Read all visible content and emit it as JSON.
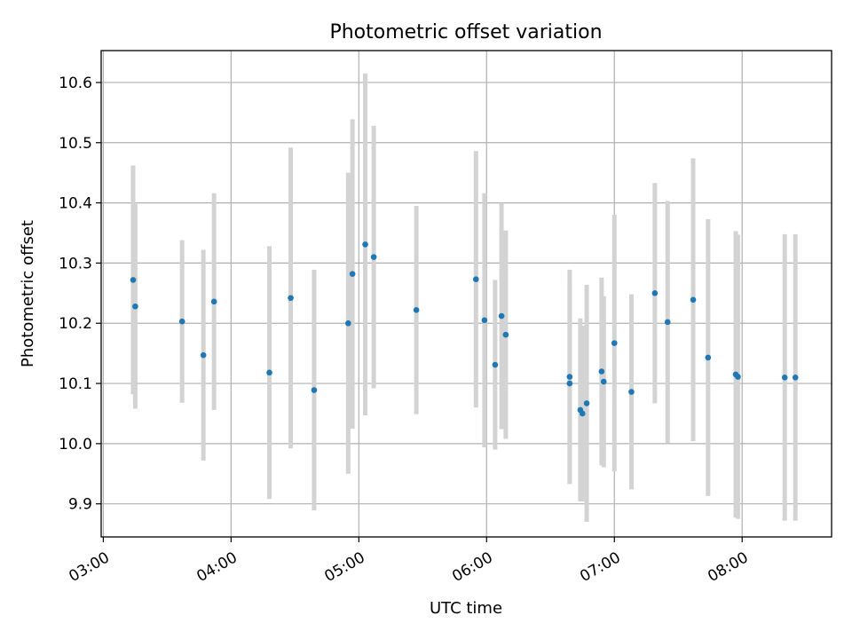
{
  "chart_data": {
    "type": "scatter",
    "title": "Photometric offset variation",
    "xlabel": "UTC time",
    "ylabel": "Photometric offset",
    "x_ticks": [
      "03:00",
      "04:00",
      "05:00",
      "06:00",
      "07:00",
      "08:00"
    ],
    "y_ticks": [
      "9.9",
      "10.0",
      "10.1",
      "10.2",
      "10.3",
      "10.4",
      "10.5",
      "10.6"
    ],
    "xlim": [
      "02:59",
      "08:42"
    ],
    "ylim": [
      9.845,
      10.653
    ],
    "grid": true,
    "colors": {
      "points": "#1f77b4",
      "errorbars": "#d3d3d3",
      "grid": "#b0b0b0"
    },
    "series": [
      {
        "x": [
          "03:14",
          "03:15",
          "03:37",
          "03:47",
          "03:52",
          "04:18",
          "04:28",
          "04:39",
          "04:55",
          "04:57",
          "05:03",
          "05:07",
          "05:27",
          "05:55",
          "05:59",
          "06:04",
          "06:07",
          "06:09",
          "06:39",
          "06:39",
          "06:44",
          "06:45",
          "06:47",
          "06:54",
          "06:55",
          "07:00",
          "07:08",
          "07:19",
          "07:25",
          "07:37",
          "07:44",
          "07:57",
          "07:58",
          "08:20",
          "08:25"
        ],
        "y": [
          10.272,
          10.228,
          10.203,
          10.147,
          10.236,
          10.118,
          10.242,
          10.089,
          10.2,
          10.282,
          10.331,
          10.31,
          10.222,
          10.273,
          10.205,
          10.131,
          10.212,
          10.181,
          10.111,
          10.1,
          10.056,
          10.05,
          10.067,
          10.12,
          10.103,
          10.167,
          10.086,
          10.25,
          10.202,
          10.239,
          10.143,
          10.115,
          10.111,
          10.11,
          10.11
        ],
        "err": [
          0.19,
          0.17,
          0.135,
          0.175,
          0.18,
          0.21,
          0.25,
          0.2,
          0.25,
          0.257,
          0.284,
          0.218,
          0.173,
          0.213,
          0.211,
          0.141,
          0.188,
          0.173,
          0.178,
          0.164,
          0.152,
          0.146,
          0.197,
          0.156,
          0.142,
          0.213,
          0.162,
          0.183,
          0.201,
          0.235,
          0.23,
          0.238,
          0.236,
          0.238,
          0.238
        ]
      }
    ]
  }
}
